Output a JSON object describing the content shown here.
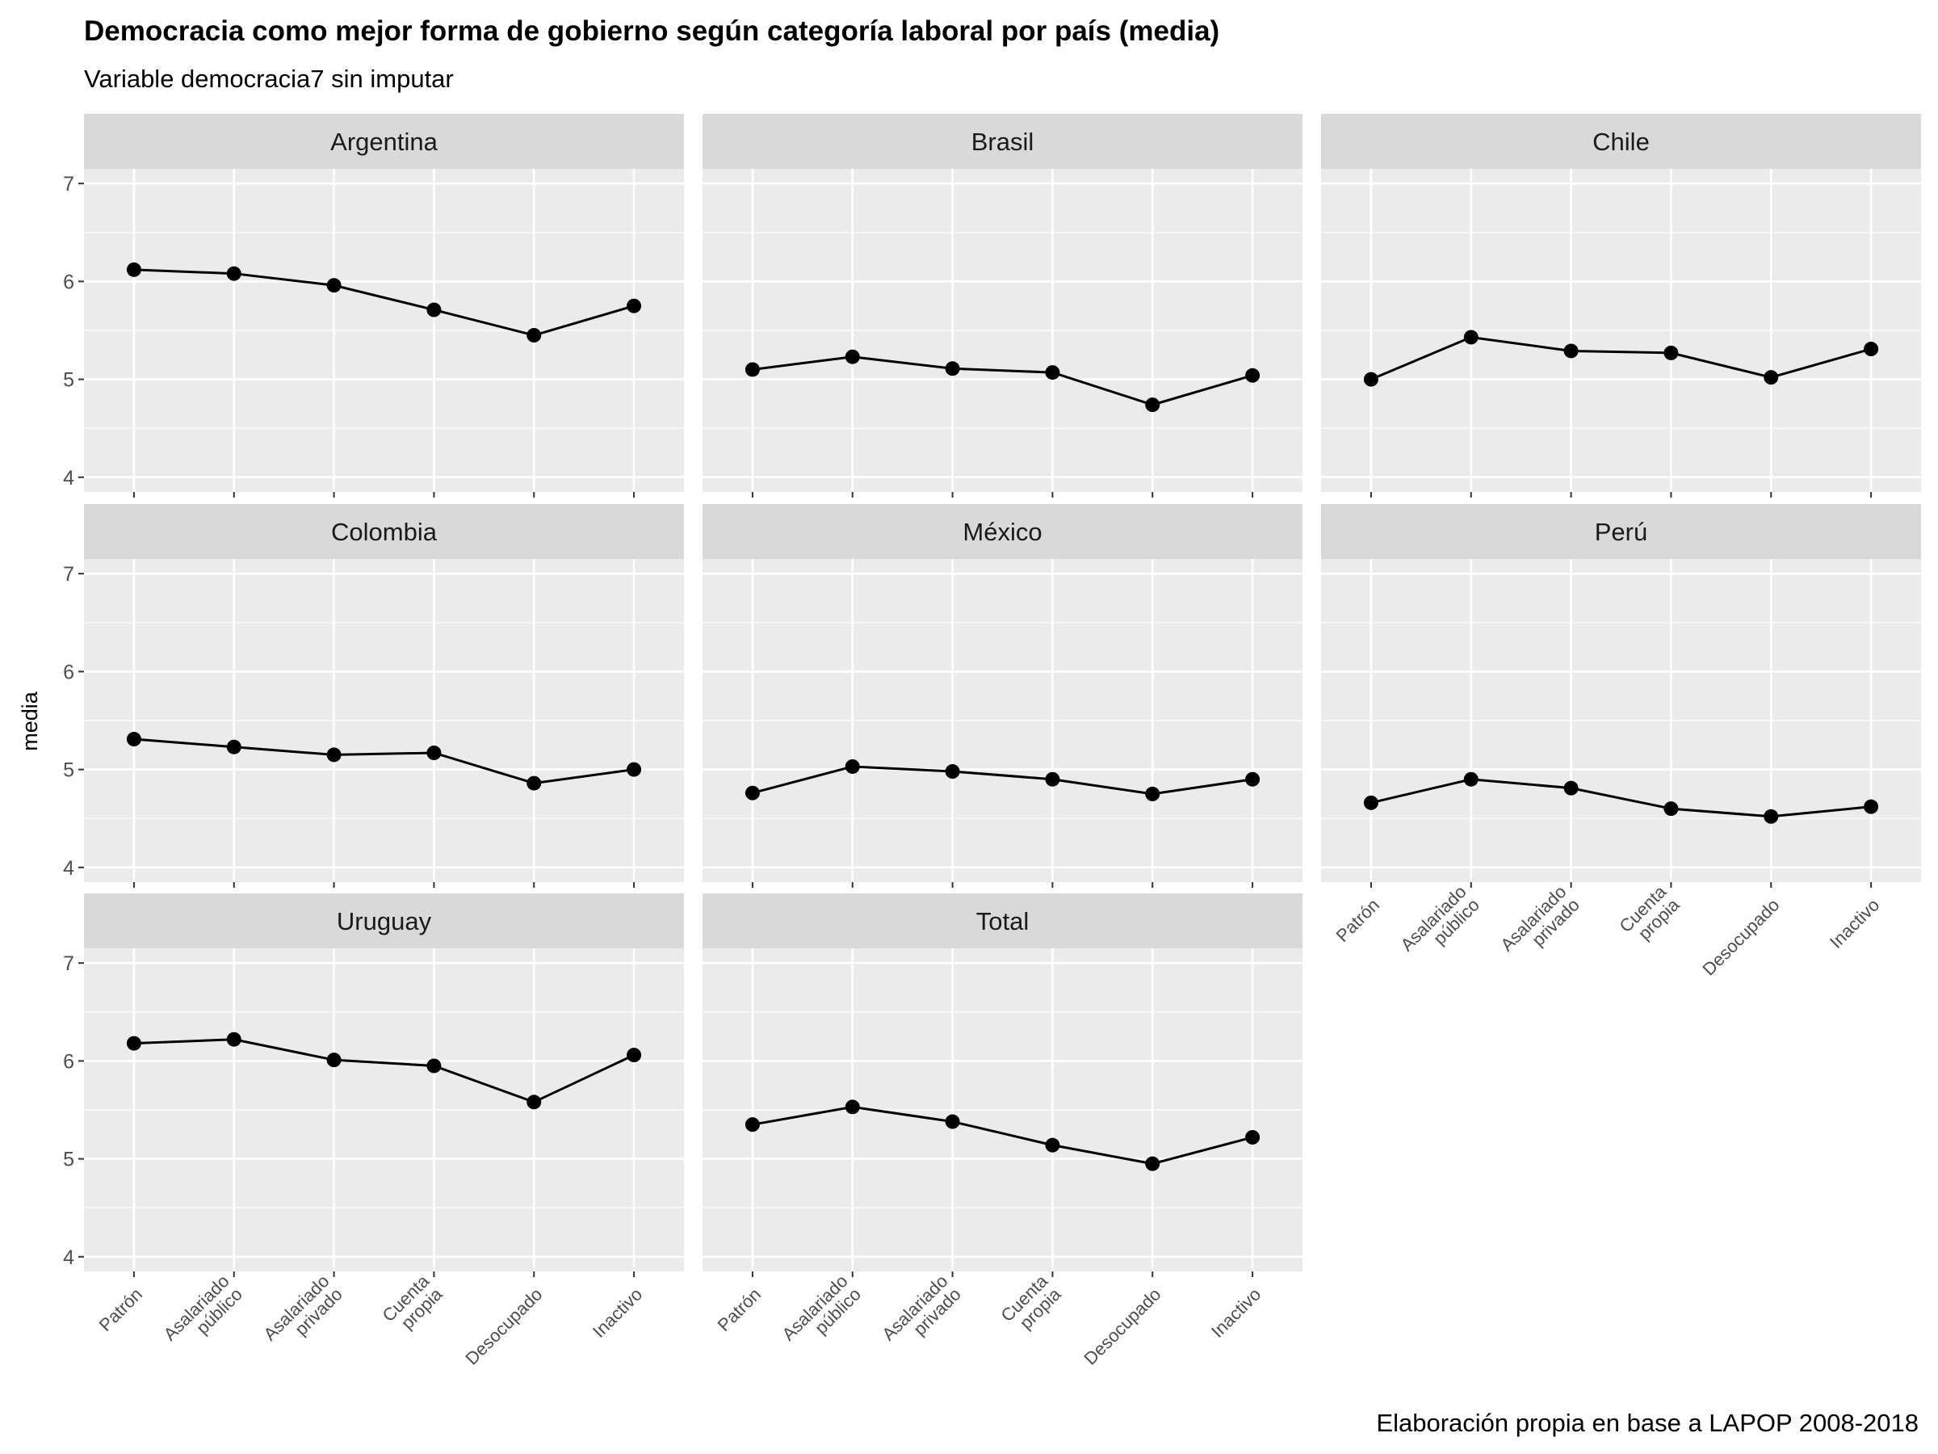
{
  "chart_data": {
    "type": "line",
    "title": "Democracia como mejor forma de gobierno según categoría laboral por país (media)",
    "subtitle": "Variable democracia7 sin imputar",
    "caption": "Elaboración propia en base a LAPOP 2008-2018",
    "xlabel": "",
    "ylabel": "media",
    "ylim": [
      3.85,
      7.15
    ],
    "yticks": [
      4,
      5,
      6,
      7
    ],
    "grid": true,
    "facet_layout": "3 columns x 3 rows",
    "categories": [
      [
        "Patrón"
      ],
      [
        "Asalariado",
        "público"
      ],
      [
        "Asalariado",
        "privado"
      ],
      [
        "Cuenta",
        "propia"
      ],
      [
        "Desocupado"
      ],
      [
        "Inactivo"
      ]
    ],
    "panels": [
      {
        "name": "Argentina",
        "values": [
          6.12,
          6.08,
          5.96,
          5.71,
          5.45,
          5.75
        ]
      },
      {
        "name": "Brasil",
        "values": [
          5.1,
          5.23,
          5.11,
          5.07,
          4.74,
          5.04
        ]
      },
      {
        "name": "Chile",
        "values": [
          5.0,
          5.43,
          5.29,
          5.27,
          5.02,
          5.31
        ]
      },
      {
        "name": "Colombia",
        "values": [
          5.31,
          5.23,
          5.15,
          5.17,
          4.86,
          5.0
        ]
      },
      {
        "name": "México",
        "values": [
          4.76,
          5.03,
          4.98,
          4.9,
          4.75,
          4.9
        ]
      },
      {
        "name": "Perú",
        "values": [
          4.66,
          4.9,
          4.81,
          4.6,
          4.52,
          4.62
        ]
      },
      {
        "name": "Uruguay",
        "values": [
          6.18,
          6.22,
          6.01,
          5.95,
          5.58,
          6.06
        ]
      },
      {
        "name": "Total",
        "values": [
          5.35,
          5.53,
          5.38,
          5.14,
          4.95,
          5.22
        ]
      }
    ]
  }
}
